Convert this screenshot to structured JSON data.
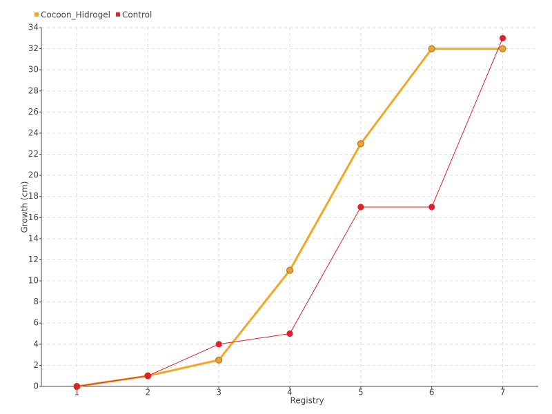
{
  "chart_data": {
    "type": "line",
    "x": [
      1,
      2,
      3,
      4,
      5,
      6,
      7
    ],
    "xlim": [
      0.5,
      7.5
    ],
    "xticks": [
      1,
      2,
      3,
      4,
      5,
      6,
      7
    ],
    "ylim": [
      0,
      34
    ],
    "yticks": [
      0,
      2,
      4,
      6,
      8,
      10,
      12,
      14,
      16,
      18,
      20,
      22,
      24,
      26,
      28,
      30,
      32,
      34
    ],
    "xlabel": "Registry",
    "ylabel": "Growth (cm)",
    "grid": true,
    "legend": "top-left",
    "series": [
      {
        "name": "Cocoon_Hidrogel",
        "color": "#f5a623",
        "values": [
          0,
          1,
          2.5,
          11,
          23,
          32,
          32
        ]
      },
      {
        "name": "Control",
        "color": "#e0202a",
        "values": [
          0,
          1,
          4,
          5,
          17,
          17,
          33
        ]
      }
    ]
  }
}
